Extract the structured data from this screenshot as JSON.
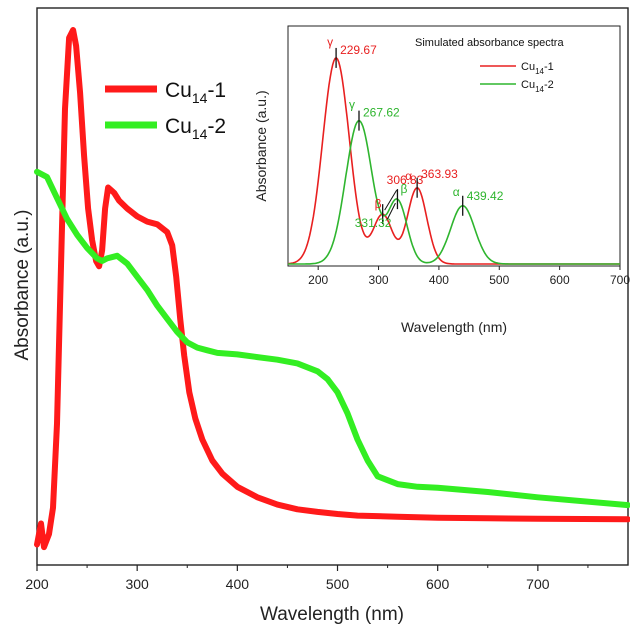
{
  "chart_data": [
    {
      "type": "line",
      "title": "",
      "xlabel": "Wavelength (nm)",
      "ylabel": "Absorbance (a.u.)",
      "xlim": [
        200,
        790
      ],
      "ylim": [
        0,
        1
      ],
      "x_ticks": [
        "200",
        "300",
        "400",
        "500",
        "600",
        "700"
      ],
      "y_ticks_shown": false,
      "grid": false,
      "legend_position": "top-left",
      "series": [
        {
          "name": "Cu14-1",
          "name_main": "Cu",
          "name_sub": "14",
          "name_suffix": "-1",
          "color": "#ff1a1a",
          "x": [
            200,
            204,
            207,
            212,
            216,
            220,
            224,
            228,
            232,
            236,
            239,
            243,
            247,
            251,
            255,
            259,
            262,
            265,
            268,
            271,
            274,
            277,
            282,
            290,
            300,
            310,
            320,
            330,
            335,
            339,
            343,
            347,
            352,
            358,
            365,
            375,
            385,
            400,
            420,
            440,
            460,
            480,
            500,
            520,
            560,
            600,
            650,
            700,
            790
          ],
          "y": [
            0.02,
            0.06,
            0.015,
            0.04,
            0.09,
            0.25,
            0.55,
            0.85,
            0.985,
            1.0,
            0.97,
            0.88,
            0.76,
            0.66,
            0.6,
            0.56,
            0.55,
            0.58,
            0.66,
            0.7,
            0.695,
            0.69,
            0.675,
            0.66,
            0.645,
            0.635,
            0.63,
            0.615,
            0.59,
            0.53,
            0.45,
            0.38,
            0.31,
            0.26,
            0.22,
            0.18,
            0.155,
            0.13,
            0.11,
            0.096,
            0.087,
            0.082,
            0.078,
            0.075,
            0.073,
            0.071,
            0.07,
            0.069,
            0.068
          ]
        },
        {
          "name": "Cu14-2",
          "name_main": "Cu",
          "name_sub": "14",
          "name_suffix": "-2",
          "color": "#33ee22",
          "x": [
            200,
            210,
            220,
            230,
            240,
            250,
            260,
            265,
            270,
            280,
            290,
            300,
            310,
            320,
            330,
            340,
            350,
            360,
            370,
            380,
            400,
            420,
            440,
            460,
            480,
            490,
            500,
            510,
            520,
            530,
            540,
            560,
            580,
            600,
            650,
            700,
            790
          ],
          "y": [
            0.73,
            0.72,
            0.68,
            0.64,
            0.61,
            0.585,
            0.565,
            0.56,
            0.565,
            0.57,
            0.555,
            0.53,
            0.505,
            0.475,
            0.45,
            0.425,
            0.405,
            0.395,
            0.39,
            0.385,
            0.382,
            0.377,
            0.372,
            0.365,
            0.35,
            0.335,
            0.31,
            0.27,
            0.22,
            0.18,
            0.15,
            0.135,
            0.13,
            0.128,
            0.12,
            0.11,
            0.095
          ]
        }
      ]
    },
    {
      "type": "line",
      "title": "Simulated  absorbance spectra",
      "xlabel": "Wavelength (nm)",
      "ylabel": "Absorbance (a.u.)",
      "xlim": [
        150,
        700
      ],
      "ylim": [
        0,
        1
      ],
      "x_ticks": [
        "200",
        "300",
        "400",
        "500",
        "600",
        "700"
      ],
      "y_ticks_shown": false,
      "grid": false,
      "legend_position": "top-right",
      "series": [
        {
          "name": "Cu14-1",
          "name_main": "Cu",
          "name_sub": "14",
          "name_suffix": "-1",
          "color": "#e82020",
          "peaks": [
            {
              "x": 229.67,
              "height": 0.92,
              "width": 22
            },
            {
              "x": 306.83,
              "height": 0.22,
              "width": 16
            },
            {
              "x": 363.93,
              "height": 0.34,
              "width": 16
            }
          ]
        },
        {
          "name": "Cu14-2",
          "name_main": "Cu",
          "name_sub": "14",
          "name_suffix": "-2",
          "color": "#2fb52f",
          "peaks": [
            {
              "x": 267.62,
              "height": 0.64,
              "width": 22
            },
            {
              "x": 331.32,
              "height": 0.28,
              "width": 16
            },
            {
              "x": 439.42,
              "height": 0.26,
              "width": 20
            }
          ]
        }
      ],
      "annotations": [
        {
          "series": 0,
          "greek": "γ",
          "text": "229.67",
          "x": 229.67
        },
        {
          "series": 1,
          "greek": "γ",
          "text": "267.62",
          "x": 267.62
        },
        {
          "series": 0,
          "greek": "β",
          "text": "306.83",
          "x": 306.83
        },
        {
          "series": 1,
          "greek": "β",
          "text": "331.32",
          "x": 331.32
        },
        {
          "series": 0,
          "greek": "α",
          "text": "363.93",
          "x": 363.93
        },
        {
          "series": 1,
          "greek": "α",
          "text": "439.42",
          "x": 439.42
        }
      ]
    }
  ]
}
